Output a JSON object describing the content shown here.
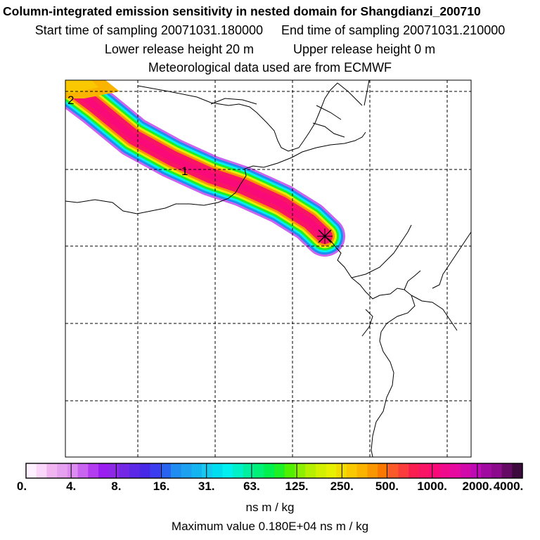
{
  "title": {
    "line1": "Column-integrated emission sensitivity in nested domain for Shangdianzi_200710",
    "start_label": "Start time of sampling 20071031.180000",
    "end_label": "End time of sampling 20071031.210000",
    "lower_label": "Lower release height   20 m",
    "upper_label": "Upper release height    0 m",
    "met_label": "Meteorological data used are from ECMWF"
  },
  "map": {
    "time_markers": [
      "2",
      "1"
    ],
    "colorbar_ticks": [
      "0.",
      "4.",
      "8.",
      "16.",
      "31.",
      "63.",
      "125.",
      "250.",
      "500.",
      "1000.",
      "2000.",
      "4000."
    ],
    "units": "ns m / kg",
    "max_value": "Maximum value  0.180E+04 ns m / kg"
  },
  "colors": {
    "colorbar": [
      "#fff0ff",
      "#fad6fa",
      "#f0b4f0",
      "#e6a0f0",
      "#dc8cf0",
      "#c864f0",
      "#b43cf0",
      "#9b1ef0",
      "#8c28e6",
      "#7328e6",
      "#5a28e6",
      "#4628e6",
      "#3c3cf0",
      "#2864f0",
      "#1e8cf0",
      "#1ea0f0",
      "#14b4f0",
      "#14c8f0",
      "#00dcf0",
      "#00f0f0",
      "#00f0c8",
      "#00f0a0",
      "#00f078",
      "#00f050",
      "#1ef028",
      "#50f000",
      "#8cf000",
      "#b4f000",
      "#d2f000",
      "#e6f000",
      "#f0dc00",
      "#fac800",
      "#fab400",
      "#fa9600",
      "#fa7800",
      "#fa5a28",
      "#fa3c3c",
      "#fa1e50",
      "#fa1464",
      "#fa0a78",
      "#f00a8c",
      "#e60aa0",
      "#d20aaa",
      "#be0ab4",
      "#a00aa0",
      "#8c0a8c",
      "#640a64",
      "#3c0a3c"
    ],
    "plume_core": "#fa1464",
    "plume_inner": "#fa0a78",
    "grid": "#000000"
  }
}
